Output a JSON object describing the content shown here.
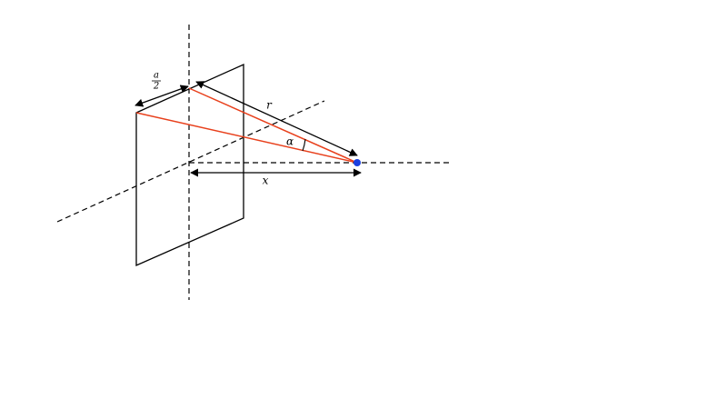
{
  "labels": {
    "half_a": {
      "numerator": "a",
      "denominator": "2"
    },
    "r": "r",
    "alpha": "α",
    "x": "x"
  }
}
